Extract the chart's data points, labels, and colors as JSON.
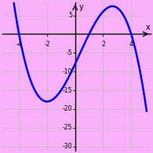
{
  "background_color": "#f8b0f8",
  "curve_color": "#0000ee",
  "curve_lw": 1.8,
  "xlim": [
    -5.2,
    5.4
  ],
  "ylim": [
    -31,
    8.5
  ],
  "xticks": [
    -4,
    -2,
    2,
    4
  ],
  "yticks": [
    -30,
    -25,
    -20,
    -15,
    -10,
    -5,
    5
  ],
  "xlabel": "x",
  "ylabel": "y",
  "x_start": -4.8,
  "x_end": 5.1,
  "coeffs": [
    -1,
    1,
    16,
    -16
  ],
  "coeff_scale": 0.5
}
